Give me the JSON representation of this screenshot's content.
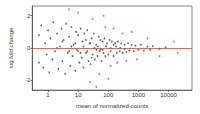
{
  "chart_data": {
    "type": "scatter",
    "x_label": "mean of normalized counts",
    "y_label": "log fold change",
    "log": "x",
    "grid": false,
    "marker": "circle",
    "xlim": [
      0.3,
      60000
    ],
    "xticks": [
      1,
      10,
      100,
      1000,
      10000
    ],
    "ylim": [
      -2.6,
      2.6
    ],
    "yticks": [
      -2,
      0,
      2
    ],
    "reference_line": {
      "y": 0,
      "color": "#ff3030"
    },
    "series": [
      {
        "color": "#404040",
        "x": [
          0.5,
          0.5,
          0.6,
          0.7,
          0.8,
          0.9,
          1,
          1.1,
          1.2,
          1.4,
          1.5,
          1.7,
          2,
          2.2,
          2.5,
          2.8,
          3,
          3.3,
          3.7,
          4,
          4.5,
          5,
          5.5,
          6,
          6.5,
          7,
          8,
          8.5,
          9,
          10,
          11,
          12,
          13,
          14,
          15,
          16,
          18,
          20,
          22,
          24,
          26,
          28,
          30,
          33,
          36,
          40,
          44,
          48,
          52,
          56,
          60,
          65,
          70,
          75,
          80,
          90,
          100,
          110,
          120,
          130,
          150,
          170,
          190,
          210,
          240,
          270,
          300,
          350,
          400,
          450,
          500,
          600,
          700,
          800,
          1000,
          1200,
          1500,
          2000,
          2500,
          3000,
          5000,
          8000,
          15,
          20,
          25,
          35,
          45,
          55,
          85,
          120,
          180,
          250,
          2,
          5,
          8,
          3,
          12,
          40,
          65,
          150,
          350,
          18,
          28,
          10,
          6
        ],
        "values": [
          0.8,
          -0.9,
          1.4,
          -1.2,
          0.3,
          -0.4,
          1.1,
          -1.5,
          0.6,
          -0.7,
          1.6,
          -0.2,
          0.9,
          -1.3,
          0.1,
          1.2,
          -0.8,
          0.5,
          -1.6,
          1.5,
          -0.3,
          0.7,
          -1.1,
          1.3,
          -0.5,
          0.2,
          -1.4,
          1.0,
          -0.1,
          0.8,
          -0.9,
          1.2,
          -0.6,
          0.4,
          -1.2,
          0.9,
          -0.3,
          1.1,
          -0.8,
          0.3,
          -1.0,
          0.6,
          -0.4,
          0.9,
          -0.7,
          0.2,
          -0.5,
          0.7,
          -0.2,
          0.5,
          -0.8,
          0.4,
          -0.3,
          0.6,
          -0.5,
          0.3,
          -0.4,
          0.5,
          -0.2,
          0.4,
          -0.5,
          0.3,
          -0.3,
          0.4,
          -0.2,
          0.3,
          -0.3,
          0.2,
          -0.25,
          0.3,
          -0.15,
          0.2,
          -0.2,
          0.15,
          -0.1,
          0.2,
          -0.15,
          0.1,
          -0.1,
          0.12,
          -0.05,
          0.05,
          0.1,
          -0.2,
          0.3,
          0.0,
          0.1,
          -0.1,
          0.1,
          0.0,
          0.1,
          0.0,
          0.0,
          -0.2,
          0.3,
          0.4,
          -0.3,
          -0.1,
          -0.1,
          0.2,
          -0.05,
          0.5,
          -0.6,
          -0.2,
          0.1
        ]
      },
      {
        "color": "#ff3030",
        "x": [
          5,
          10,
          25,
          30,
          40,
          50,
          70,
          80,
          100,
          120,
          150,
          200,
          300,
          400,
          600,
          900,
          2000,
          5000,
          15000,
          20000
        ],
        "values": [
          2.4,
          2.2,
          -2.1,
          1.8,
          -2.4,
          -1.6,
          2.0,
          1.3,
          -1.9,
          -1.1,
          1.2,
          -0.9,
          0.9,
          -0.8,
          1.0,
          -0.7,
          0.6,
          -0.5,
          0.4,
          -0.3
        ]
      }
    ]
  }
}
